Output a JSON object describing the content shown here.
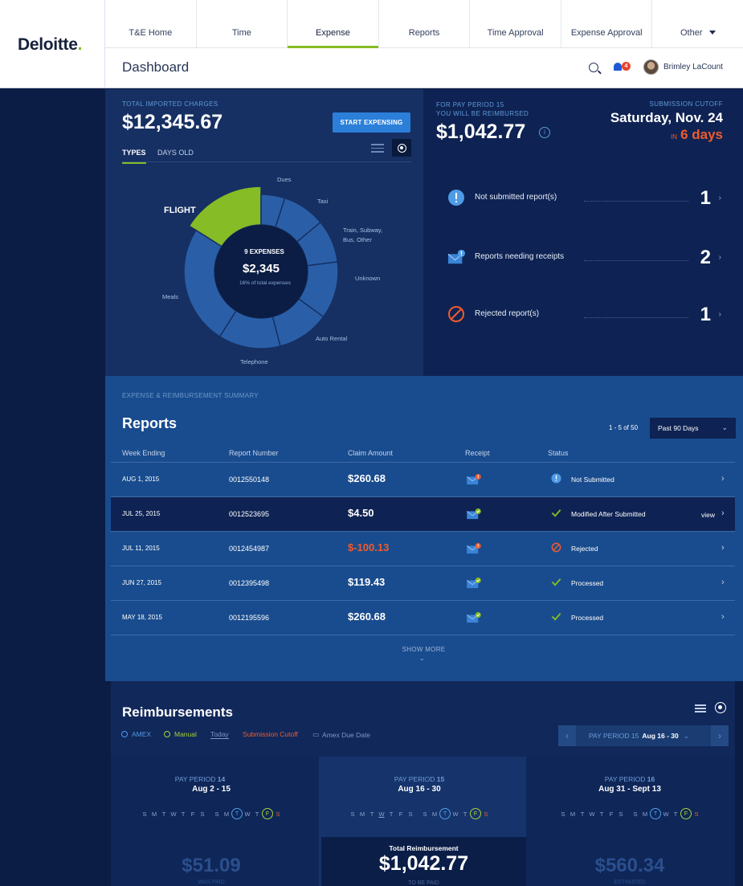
{
  "brand": {
    "name": "Deloitte",
    "dot": "."
  },
  "nav": {
    "items": [
      {
        "label": "T&E Home"
      },
      {
        "label": "Time"
      },
      {
        "label": "Expense",
        "active": true
      },
      {
        "label": "Reports"
      },
      {
        "label": "Time Approval"
      },
      {
        "label": "Expense Approval"
      },
      {
        "label": "Other"
      }
    ]
  },
  "header": {
    "title": "Dashboard",
    "notifications": "4",
    "user_name": "Brimley LaCount"
  },
  "charges": {
    "label": "TOTAL IMPORTED CHARGES",
    "value": "$12,345.67",
    "start_button": "START EXPENSING",
    "tabs": {
      "types": "TYPES",
      "days_old": "DAYS OLD"
    }
  },
  "donut": {
    "highlight_label": "FLIGHT",
    "center_count": "9 EXPENSES",
    "center_value": "$2,345",
    "center_sub": "16% of total expenses",
    "highlight_color": "#86bc25",
    "base_color": "#2a5fa8",
    "categories": [
      {
        "name": "Flight",
        "share": 0.16
      },
      {
        "name": "Dues",
        "share": 0.05
      },
      {
        "name": "Taxi",
        "share": 0.09
      },
      {
        "name": "Train, Subway, Bus, Other",
        "share": 0.09
      },
      {
        "name": "Unknown",
        "share": 0.12
      },
      {
        "name": "Auto Rental",
        "share": 0.11
      },
      {
        "name": "Telephone",
        "share": 0.13
      },
      {
        "name": "Meals",
        "share": 0.25
      }
    ],
    "labels": [
      "Dues",
      "Taxi",
      "Train, Subway,",
      "Bus, Other",
      "Unknown",
      "Auto Rental",
      "Telephone",
      "Meals"
    ]
  },
  "period": {
    "label_line1": "FOR PAY PERIOD 15",
    "label_line2": "YOU WILL BE REIMBURSED",
    "value": "$1,042.77",
    "cutoff_label": "SUBMISSION CUTOFF",
    "cutoff_date": "Saturday, Nov. 24",
    "cutoff_in": "IN",
    "cutoff_days": "6 days"
  },
  "stats": [
    {
      "label": "Not submitted report(s)",
      "count": "1"
    },
    {
      "label": "Reports needing receipts",
      "count": "2"
    },
    {
      "label": "Rejected report(s)",
      "count": "1"
    }
  ],
  "reports": {
    "section_label": "EXPENSE & REIMBURSEMENT SUMMARY",
    "title": "Reports",
    "pagination": "1 - 5 of 50",
    "range": "Past 90 Days",
    "columns": {
      "week": "Week Ending",
      "number": "Report Number",
      "amount": "Claim Amount",
      "receipt": "Receipt",
      "status": "Status"
    },
    "rows": [
      {
        "date": "AUG 1, 2015",
        "number": "0012550148",
        "amount": "$260.68",
        "status": "Not Submitted",
        "receipt": "missing",
        "state": "info"
      },
      {
        "date": "JUL 25, 2015",
        "number": "0012523695",
        "amount": "$4.50",
        "status": "Modified After Submitted",
        "receipt": "ok",
        "state": "ok",
        "view": "view"
      },
      {
        "date": "JUL 11, 2015",
        "number": "0012454987",
        "amount": "$-100.13",
        "status": "Rejected",
        "receipt": "missing",
        "state": "rejected"
      },
      {
        "date": "JUN 27, 2015",
        "number": "0012395498",
        "amount": "$119.43",
        "status": "Processed",
        "receipt": "ok",
        "state": "ok"
      },
      {
        "date": "MAY 18, 2015",
        "number": "0012195596",
        "amount": "$260.68",
        "status": "Processed",
        "receipt": "ok",
        "state": "ok"
      }
    ],
    "show_more": "SHOW MORE"
  },
  "reimbursements": {
    "title": "Reimbursements",
    "legend": {
      "amex": "AMEX",
      "manual": "Manual",
      "today": "Today",
      "cutoff": "Submission Cutoff",
      "amex_due": "Amex Due Date"
    },
    "nav": {
      "period": "PAY PERIOD 15",
      "range": "Aug 16 - 30"
    },
    "periods": [
      {
        "label": "PAY PERIOD",
        "num": "14",
        "range": "Aug 2 - 15",
        "amount": "$51.09",
        "sub": "WAS PAID"
      },
      {
        "label": "PAY PERIOD",
        "num": "15",
        "range": "Aug 16 - 30",
        "amount": "$1,042.77",
        "sub": "TO BE PAID",
        "total_label": "Total Reimbursement"
      },
      {
        "label": "PAY PERIOD",
        "num": "16",
        "range": "Aug 31 - Sept 13",
        "amount": "$560.34",
        "sub": "ESTIMATED"
      }
    ],
    "weekdays": [
      "S",
      "M",
      "T",
      "W",
      "T",
      "F",
      "S"
    ]
  },
  "colors": {
    "accent": "#86bc25",
    "alert": "#ef5b2e",
    "primary": "#2b7fd9"
  }
}
